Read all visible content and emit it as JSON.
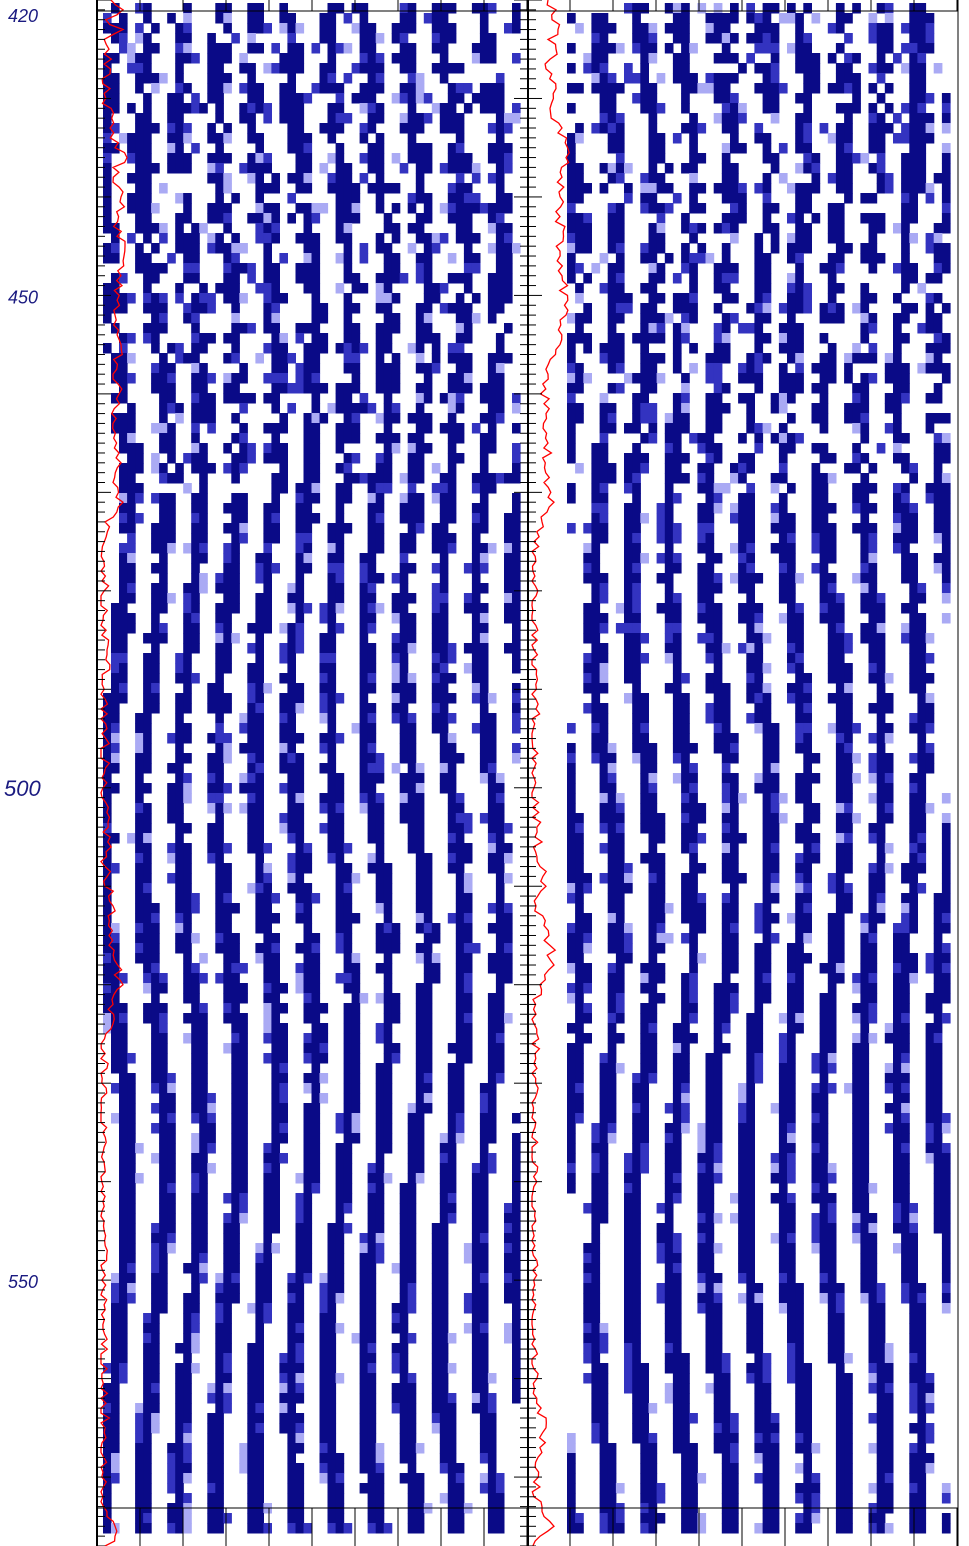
{
  "chart_data": {
    "type": "heatmap",
    "title": "",
    "xlabel": "",
    "ylabel": "",
    "depth_axis": {
      "range": [
        420,
        577
      ],
      "labeled_ticks": [
        {
          "depth": 420,
          "label": "420"
        },
        {
          "depth": 450,
          "label": "450"
        },
        {
          "depth": 500,
          "label": "500"
        },
        {
          "depth": 550,
          "label": "550"
        }
      ],
      "minor_tick_step": 1,
      "orientation": "downward"
    },
    "data_start_depth": 420.3,
    "data_end_depth": 576.0,
    "tracks": [
      {
        "id": "left-track",
        "curve": "red",
        "curve_profile": [
          [
            420,
            0.25
          ],
          [
            421,
            0.55
          ],
          [
            422,
            0.12
          ],
          [
            423,
            0.55
          ],
          [
            424,
            0.08
          ],
          [
            425,
            0.2
          ],
          [
            430,
            0.12
          ],
          [
            435,
            0.35
          ],
          [
            436,
            0.65
          ],
          [
            437,
            0.3
          ],
          [
            440,
            0.5
          ],
          [
            444,
            0.4
          ],
          [
            445,
            0.6
          ],
          [
            448,
            0.5
          ],
          [
            452,
            0.35
          ],
          [
            455,
            0.5
          ],
          [
            458,
            0.3
          ],
          [
            460,
            0.45
          ],
          [
            463,
            0.3
          ],
          [
            466,
            0.45
          ],
          [
            469,
            0.3
          ],
          [
            471,
            0.55
          ],
          [
            473,
            0.1
          ],
          [
            476,
            0.02
          ],
          [
            480,
            0.08
          ],
          [
            483,
            0.05
          ],
          [
            487,
            0.12
          ],
          [
            490,
            0.08
          ],
          [
            495,
            0.12
          ],
          [
            500,
            0.05
          ],
          [
            504,
            0.18
          ],
          [
            508,
            0.1
          ],
          [
            512,
            0.3
          ],
          [
            516,
            0.2
          ],
          [
            520,
            0.55
          ],
          [
            522,
            0.3
          ],
          [
            525,
            0.12
          ],
          [
            530,
            0.02
          ],
          [
            535,
            0.05
          ],
          [
            540,
            0.02
          ],
          [
            545,
            0.08
          ],
          [
            550,
            0.02
          ],
          [
            555,
            0.05
          ],
          [
            560,
            0.02
          ],
          [
            565,
            0.1
          ],
          [
            570,
            0.02
          ],
          [
            574,
            0.15
          ],
          [
            576,
            0.35
          ],
          [
            577,
            0.1
          ]
        ]
      },
      {
        "id": "right-track",
        "curve": "red",
        "curve_profile": [
          [
            420,
            0.4
          ],
          [
            421,
            0.6
          ],
          [
            422,
            0.5
          ],
          [
            423,
            0.65
          ],
          [
            424,
            0.4
          ],
          [
            425,
            0.6
          ],
          [
            427,
            0.35
          ],
          [
            429,
            0.6
          ],
          [
            431,
            0.45
          ],
          [
            433,
            0.75
          ],
          [
            436,
            0.85
          ],
          [
            438,
            0.75
          ],
          [
            442,
            0.7
          ],
          [
            448,
            0.75
          ],
          [
            452,
            0.85
          ],
          [
            455,
            0.7
          ],
          [
            458,
            0.4
          ],
          [
            461,
            0.3
          ],
          [
            465,
            0.4
          ],
          [
            469,
            0.3
          ],
          [
            471,
            0.55
          ],
          [
            473,
            0.25
          ],
          [
            475,
            0.05
          ],
          [
            478,
            0.02
          ],
          [
            482,
            0.02
          ],
          [
            486,
            0.05
          ],
          [
            492,
            0.1
          ],
          [
            496,
            0.02
          ],
          [
            500,
            0.05
          ],
          [
            504,
            0.12
          ],
          [
            508,
            0.2
          ],
          [
            510,
            0.35
          ],
          [
            512,
            0.1
          ],
          [
            514,
            0.3
          ],
          [
            518,
            0.55
          ],
          [
            520,
            0.2
          ],
          [
            523,
            0.1
          ],
          [
            528,
            0.05
          ],
          [
            535,
            0.02
          ],
          [
            545,
            0.02
          ],
          [
            555,
            0.02
          ],
          [
            562,
            0.12
          ],
          [
            565,
            0.35
          ],
          [
            568,
            0.15
          ],
          [
            572,
            0.05
          ],
          [
            574,
            0.3
          ],
          [
            575,
            0.55
          ],
          [
            576,
            0.2
          ],
          [
            577,
            0.02
          ]
        ]
      }
    ],
    "colors": {
      "image_dark": "#0a0a87",
      "image_mid": "#3333c0",
      "image_light": "#aaaaf4",
      "curve": "#ff0000",
      "depth_label": "#1a1a80",
      "frame": "#000000"
    }
  }
}
